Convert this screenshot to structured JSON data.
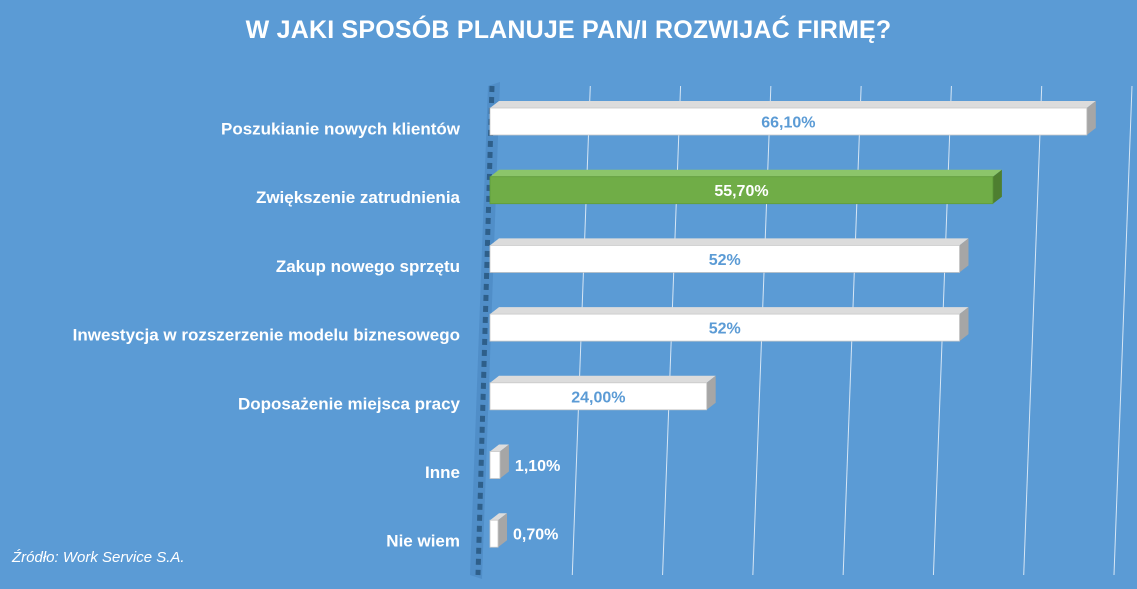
{
  "chart_data": {
    "type": "bar",
    "orientation": "horizontal",
    "title": "W JAKI SPOSÓB PLANUJE PAN/I ROZWIJAĆ FIRMĘ?",
    "categories": [
      "Poszukianie nowych klientów",
      "Zwiększenie zatrudnienia",
      "Zakup nowego sprzętu",
      "Inwestycja w rozszerzenie modelu biznesowego",
      "Doposażenie miejsca pracy",
      "Inne",
      "Nie wiem"
    ],
    "values": [
      66.1,
      55.7,
      52,
      52,
      24,
      1.1,
      0.7
    ],
    "value_labels": [
      "66,10%",
      "55,70%",
      "52%",
      "52%",
      "24,00%",
      "1,10%",
      "0,70%"
    ],
    "highlight_index": 1,
    "xlim": [
      0,
      70
    ],
    "grid": true,
    "legend": "none"
  },
  "colors": {
    "background": "#5b9bd5",
    "bar_default": "#ffffff",
    "bar_highlight": "#70ad47",
    "label_on_bar": "#5b9bd5",
    "label_highlight": "#ffffff",
    "gridline": "#d6e6f5"
  },
  "source": "Źródło: Work Service S.A."
}
